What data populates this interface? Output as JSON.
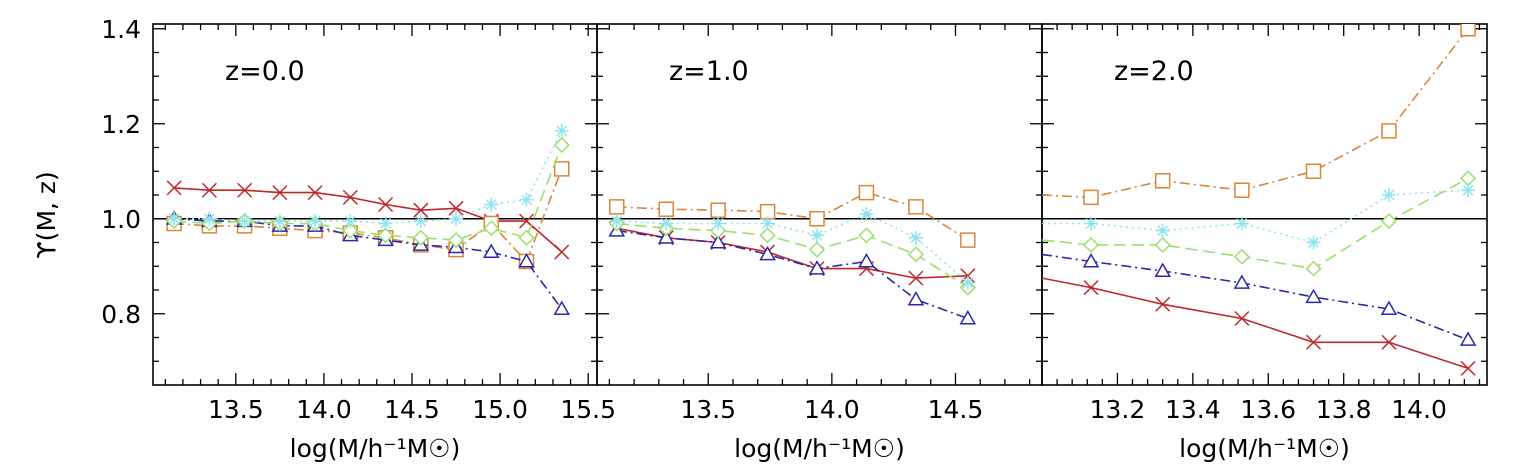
{
  "colors": {
    "red": "#c0272d",
    "blue": "#2a2aa8",
    "orange": "#d9863a",
    "green": "#98e06a",
    "cyan": "#8fe3ee"
  },
  "figure": {
    "ylabel": "ϒ(M, z)",
    "xlabel": "log(M/h⁻¹M☉)"
  },
  "chart_data": [
    {
      "type": "line",
      "label": "z=0.0",
      "xlim": [
        13.03,
        15.55
      ],
      "ylim": [
        0.65,
        1.41
      ],
      "xticks": [
        13.5,
        14.0,
        14.5,
        15.0,
        15.5
      ],
      "xtick_labels": [
        "13.5",
        "14.0",
        "14.5",
        "15.0",
        "15.5"
      ],
      "yticks": [
        0.8,
        1.0,
        1.2,
        1.4
      ],
      "ytick_labels": [
        "0.8",
        "1.0",
        "1.2",
        "1.4"
      ],
      "reference_y": 1.0,
      "series": [
        {
          "marker": "x",
          "color": "red",
          "dash": "",
          "x": [
            13.15,
            13.35,
            13.55,
            13.75,
            13.95,
            14.15,
            14.35,
            14.55,
            14.75,
            14.95,
            15.15,
            15.35
          ],
          "y": [
            1.065,
            1.06,
            1.06,
            1.055,
            1.055,
            1.045,
            1.03,
            1.018,
            1.022,
            0.995,
            0.995,
            0.93
          ]
        },
        {
          "marker": "square",
          "color": "orange",
          "dash": "10 4 2 4",
          "x": [
            13.15,
            13.35,
            13.55,
            13.75,
            13.95,
            14.15,
            14.35,
            14.55,
            14.75,
            14.95,
            15.15,
            15.35
          ],
          "y": [
            0.99,
            0.985,
            0.985,
            0.98,
            0.975,
            0.97,
            0.96,
            0.945,
            0.935,
            0.99,
            0.91,
            1.105
          ]
        },
        {
          "marker": "triangle",
          "color": "blue",
          "dash": "10 4 2 4",
          "x": [
            13.15,
            13.35,
            13.55,
            13.75,
            13.95,
            14.15,
            14.35,
            14.55,
            14.75,
            14.95,
            15.15,
            15.35
          ],
          "y": [
            1.0,
            0.995,
            0.995,
            0.985,
            0.985,
            0.965,
            0.955,
            0.945,
            0.94,
            0.93,
            0.91,
            0.81
          ]
        },
        {
          "marker": "diamond",
          "color": "green",
          "dash": "12 6",
          "x": [
            13.15,
            13.35,
            13.55,
            13.75,
            13.95,
            14.15,
            14.35,
            14.55,
            14.75,
            14.95,
            15.15,
            15.35
          ],
          "y": [
            0.995,
            0.99,
            0.995,
            0.99,
            0.99,
            0.975,
            0.965,
            0.96,
            0.955,
            0.98,
            0.96,
            1.155
          ]
        },
        {
          "marker": "asterisk",
          "color": "cyan",
          "dash": "2 4",
          "x": [
            13.15,
            13.35,
            13.55,
            13.75,
            13.95,
            14.15,
            14.35,
            14.55,
            14.75,
            14.95,
            15.15,
            15.35
          ],
          "y": [
            1.0,
            1.0,
            0.995,
            0.995,
            0.995,
            0.995,
            0.99,
            0.995,
            1.0,
            1.03,
            1.04,
            1.185
          ]
        }
      ]
    },
    {
      "type": "line",
      "label": "z=1.0",
      "xlim": [
        13.05,
        14.85
      ],
      "ylim": [
        0.65,
        1.41
      ],
      "xticks": [
        13.5,
        14.0,
        14.5
      ],
      "xtick_labels": [
        "13.5",
        "14.0",
        "14.5"
      ],
      "yticks": [
        0.8,
        1.0,
        1.2,
        1.4
      ],
      "ytick_labels": [],
      "reference_y": 1.0,
      "series": [
        {
          "marker": "x",
          "color": "red",
          "dash": "",
          "x": [
            13.13,
            13.33,
            13.54,
            13.74,
            13.94,
            14.14,
            14.34,
            14.55
          ],
          "y": [
            0.98,
            0.96,
            0.95,
            0.93,
            0.895,
            0.895,
            0.875,
            0.88
          ]
        },
        {
          "marker": "square",
          "color": "orange",
          "dash": "10 4 2 4",
          "x": [
            13.13,
            13.33,
            13.54,
            13.74,
            13.94,
            14.14,
            14.34,
            14.55
          ],
          "y": [
            1.025,
            1.02,
            1.018,
            1.015,
            1.0,
            1.055,
            1.025,
            0.955
          ]
        },
        {
          "marker": "triangle",
          "color": "blue",
          "dash": "10 4 2 4",
          "x": [
            13.13,
            13.33,
            13.54,
            13.74,
            13.94,
            14.14,
            14.34,
            14.55
          ],
          "y": [
            0.975,
            0.96,
            0.95,
            0.925,
            0.895,
            0.91,
            0.83,
            0.79
          ]
        },
        {
          "marker": "diamond",
          "color": "green",
          "dash": "12 6",
          "x": [
            13.13,
            13.33,
            13.54,
            13.74,
            13.94,
            14.14,
            14.34,
            14.55
          ],
          "y": [
            0.99,
            0.98,
            0.975,
            0.965,
            0.935,
            0.965,
            0.925,
            0.855
          ]
        },
        {
          "marker": "asterisk",
          "color": "cyan",
          "dash": "2 4",
          "x": [
            13.13,
            13.33,
            13.54,
            13.74,
            13.94,
            14.14,
            14.34,
            14.55
          ],
          "y": [
            0.995,
            0.99,
            0.99,
            0.99,
            0.965,
            1.01,
            0.96,
            0.865
          ]
        }
      ]
    },
    {
      "type": "line",
      "label": "z=2.0",
      "xlim": [
        13.0,
        14.18
      ],
      "ylim": [
        0.65,
        1.41
      ],
      "xticks": [
        13.2,
        13.4,
        13.6,
        13.8,
        14.0
      ],
      "xtick_labels": [
        "13.2",
        "13.4",
        "13.6",
        "13.8",
        "14.0"
      ],
      "yticks": [
        0.8,
        1.0,
        1.2,
        1.4
      ],
      "ytick_labels": [],
      "reference_y": 1.0,
      "series": [
        {
          "marker": "x",
          "color": "red",
          "dash": "",
          "x": [
            13.0,
            13.13,
            13.32,
            13.53,
            13.72,
            13.92,
            14.13
          ],
          "y": [
            0.875,
            0.855,
            0.82,
            0.79,
            0.74,
            0.74,
            0.685
          ]
        },
        {
          "marker": "square",
          "color": "orange",
          "dash": "10 4 2 4",
          "x": [
            13.0,
            13.13,
            13.32,
            13.53,
            13.72,
            13.92,
            14.13
          ],
          "y": [
            1.05,
            1.045,
            1.08,
            1.06,
            1.1,
            1.185,
            1.4
          ]
        },
        {
          "marker": "triangle",
          "color": "blue",
          "dash": "10 4 2 4",
          "x": [
            13.0,
            13.13,
            13.32,
            13.53,
            13.72,
            13.92,
            14.13
          ],
          "y": [
            0.925,
            0.91,
            0.89,
            0.865,
            0.835,
            0.81,
            0.745
          ]
        },
        {
          "marker": "diamond",
          "color": "green",
          "dash": "12 6",
          "x": [
            13.0,
            13.13,
            13.32,
            13.53,
            13.72,
            13.92,
            14.13
          ],
          "y": [
            0.955,
            0.945,
            0.945,
            0.92,
            0.895,
            0.995,
            1.085
          ]
        },
        {
          "marker": "asterisk",
          "color": "cyan",
          "dash": "2 4",
          "x": [
            13.0,
            13.13,
            13.32,
            13.53,
            13.72,
            13.92,
            14.13
          ],
          "y": [
            0.99,
            0.99,
            0.975,
            0.99,
            0.95,
            1.05,
            1.06
          ]
        }
      ]
    }
  ]
}
